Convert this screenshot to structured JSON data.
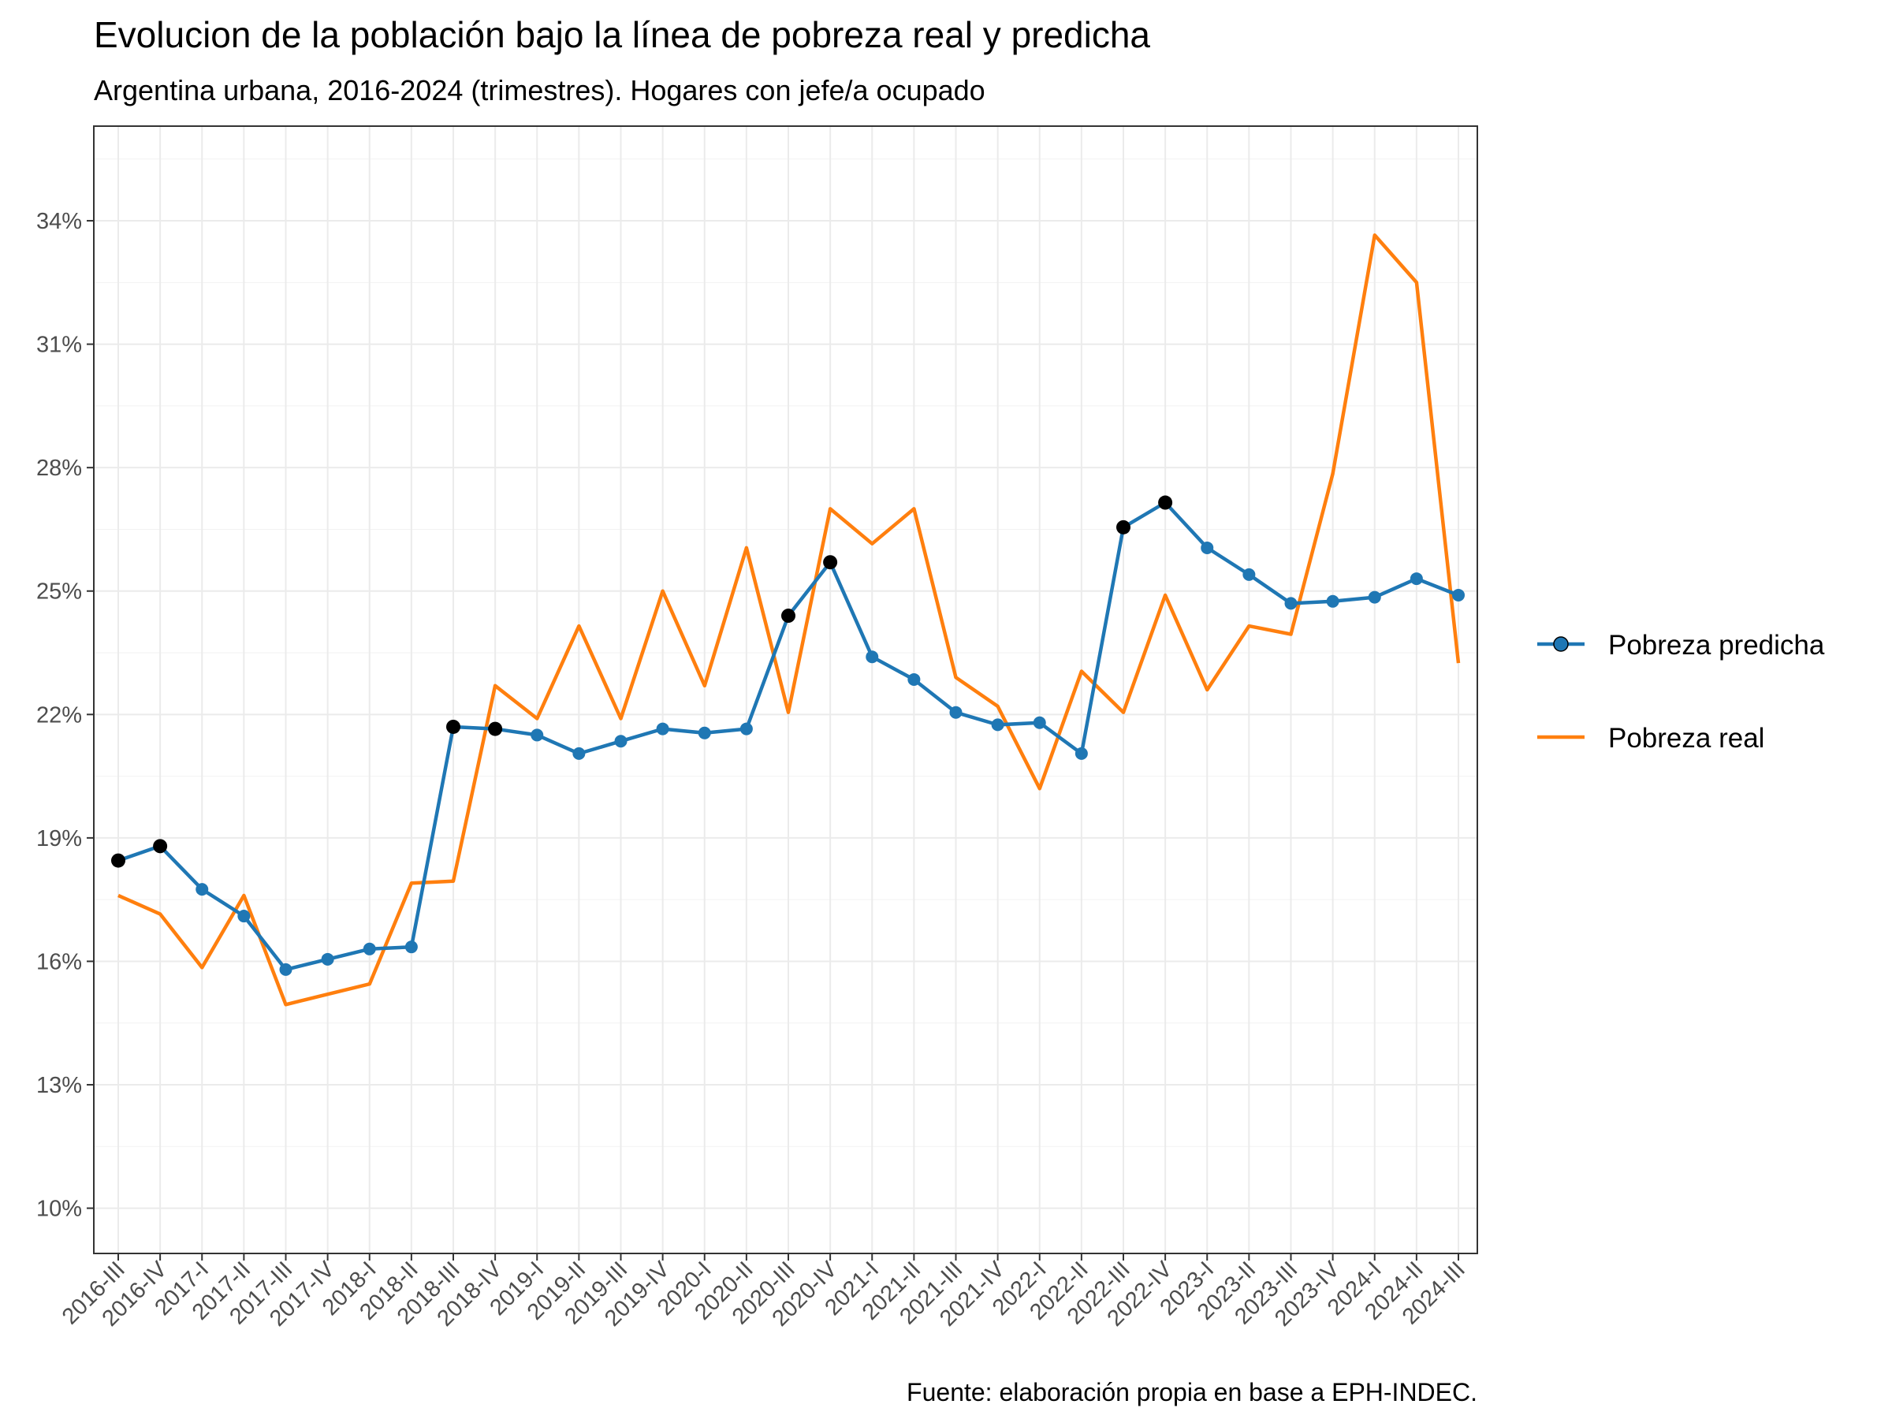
{
  "chart_data": {
    "type": "line",
    "title": "Evolucion de la población bajo la línea de pobreza real y predicha",
    "subtitle": "Argentina urbana, 2016-2024 (trimestres). Hogares con jefe/a ocupado",
    "caption": "Fuente: elaboración propia en base a EPH-INDEC.",
    "xlabel": "",
    "ylabel": "",
    "categories": [
      "2016-III",
      "2016-IV",
      "2017-I",
      "2017-II",
      "2017-III",
      "2017-IV",
      "2018-I",
      "2018-II",
      "2018-III",
      "2018-IV",
      "2019-I",
      "2019-II",
      "2019-III",
      "2019-IV",
      "2020-I",
      "2020-II",
      "2020-III",
      "2020-IV",
      "2021-I",
      "2021-II",
      "2021-III",
      "2021-IV",
      "2022-I",
      "2022-II",
      "2022-III",
      "2022-IV",
      "2023-I",
      "2023-II",
      "2023-III",
      "2023-IV",
      "2024-I",
      "2024-II",
      "2024-III"
    ],
    "y_ticks": [
      10,
      13,
      16,
      19,
      22,
      25,
      28,
      31,
      34
    ],
    "y_tick_labels": [
      "10%",
      "13%",
      "16%",
      "19%",
      "22%",
      "25%",
      "28%",
      "31%",
      "34%"
    ],
    "ylim": [
      8.9,
      36.3
    ],
    "grid": true,
    "legend_position": "right",
    "series": [
      {
        "name": "Pobreza predicha",
        "color": "#1f77b4",
        "marker": "circle",
        "values": [
          18.45,
          18.8,
          17.75,
          17.1,
          15.8,
          16.05,
          16.3,
          16.35,
          21.7,
          21.65,
          21.5,
          21.05,
          21.35,
          21.65,
          21.55,
          21.65,
          24.4,
          25.7,
          23.4,
          22.85,
          22.05,
          21.75,
          21.8,
          21.05,
          26.55,
          27.15,
          26.05,
          25.4,
          24.7,
          24.75,
          24.85,
          25.3,
          24.9
        ],
        "highlighted_indices": [
          0,
          1,
          8,
          9,
          16,
          17,
          24,
          25
        ],
        "highlight_color": "#000000"
      },
      {
        "name": "Pobreza real",
        "color": "#ff7f0e",
        "marker": "none",
        "values": [
          17.6,
          17.15,
          15.85,
          17.6,
          14.95,
          15.2,
          15.45,
          17.9,
          17.95,
          22.7,
          21.9,
          24.15,
          21.9,
          25.0,
          22.7,
          26.05,
          22.05,
          27.0,
          26.15,
          27.0,
          22.9,
          22.2,
          20.2,
          23.05,
          22.05,
          24.9,
          22.6,
          24.15,
          23.95,
          27.85,
          33.65,
          32.5,
          23.25
        ]
      }
    ]
  }
}
